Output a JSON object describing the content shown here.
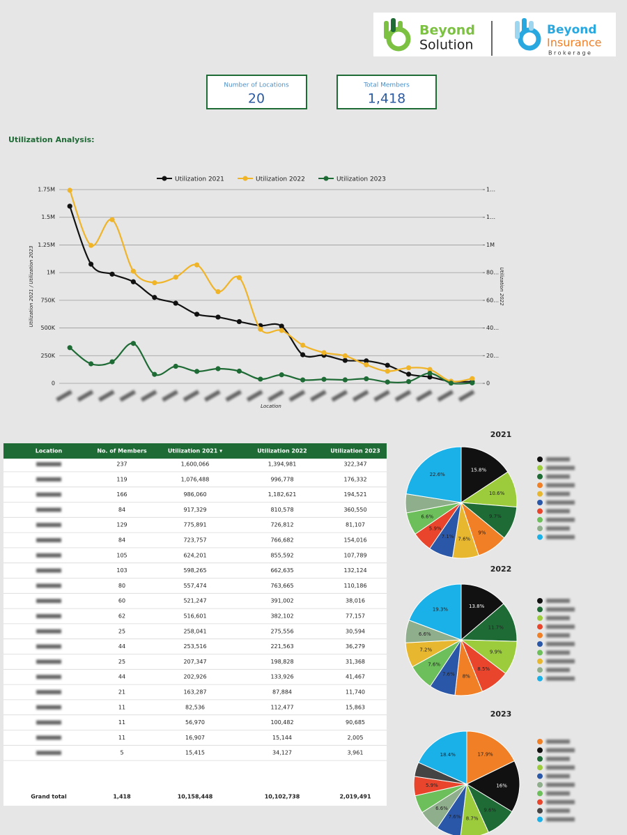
{
  "header": {
    "logo_left": [
      "Beyond",
      "Solution"
    ],
    "logo_right": [
      "Beyond",
      "Insurance",
      "Brokerage"
    ]
  },
  "kpis": [
    {
      "label": "Number of Locations",
      "value": "20"
    },
    {
      "label": "Total Members",
      "value": "1,418"
    }
  ],
  "section_title": "Utilization Analysis:",
  "chart_data": [
    {
      "type": "line",
      "legend": "top",
      "grid": true,
      "x_label": "Location",
      "y_label": "Utilization 2021 / Utilization 2023",
      "y2_label": "Utilization 2022",
      "categories": [
        null,
        null,
        null,
        null,
        null,
        null,
        null,
        null,
        null,
        null,
        null,
        null,
        null,
        null,
        null,
        null,
        null,
        null,
        null,
        null
      ],
      "ylim": [
        0,
        1750000
      ],
      "yticks": [
        0,
        {
          "value": 250000,
          "label": "250K"
        },
        {
          "value": 500000,
          "label": "500K"
        },
        {
          "value": 750000,
          "label": "750K"
        },
        {
          "value": 1000000,
          "label": "1M"
        },
        {
          "value": 1250000,
          "label": "1.25M"
        },
        {
          "value": 1500000,
          "label": "1.5M"
        },
        {
          "value": 1750000,
          "label": "1.75M"
        }
      ],
      "y2lim": [
        0,
        1400000
      ],
      "y2ticks": [
        0,
        {
          "value": 200000,
          "label": "20…"
        },
        {
          "value": 400000,
          "label": "40…"
        },
        {
          "value": 600000,
          "label": "60…"
        },
        {
          "value": 800000,
          "label": "80…"
        },
        {
          "value": 1000000,
          "label": "1M"
        },
        {
          "value": 1200000,
          "label": "1…"
        },
        {
          "value": 1400000,
          "label": "1…"
        }
      ],
      "series": [
        {
          "name": "Utilization 2021",
          "color": "#111111",
          "values": [
            1600066,
            1076488,
            986060,
            917329,
            775891,
            723757,
            624201,
            598265,
            557474,
            521247,
            516601,
            258041,
            253516,
            207347,
            202926,
            163287,
            82536,
            56970,
            16907,
            15415
          ]
        },
        {
          "name": "Utilization 2022",
          "color": "#f0b429",
          "axis": "y2",
          "values": [
            1394981,
            996778,
            1182621,
            810578,
            726812,
            766682,
            855592,
            662635,
            763665,
            391002,
            382102,
            275556,
            221563,
            198828,
            133926,
            87884,
            112477,
            100482,
            15144,
            34127
          ]
        },
        {
          "name": "Utilization 2023",
          "color": "#1e6b35",
          "values": [
            322347,
            176332,
            194521,
            360550,
            81107,
            154016,
            107789,
            132124,
            110186,
            38016,
            77157,
            30594,
            36279,
            31368,
            41467,
            11740,
            15863,
            90685,
            2005,
            3961
          ]
        }
      ]
    },
    {
      "type": "pie",
      "title": "2021",
      "labels": [
        null,
        null,
        null,
        null,
        null,
        null,
        null,
        null,
        null,
        null
      ],
      "values": [
        15.8,
        10.6,
        9.7,
        9,
        7.6,
        7.1,
        5.9,
        6.6,
        5.5,
        22.6
      ],
      "value_labels": [
        "15.8%",
        "10.6%",
        "9.7%",
        "9%",
        "7.6%",
        "7.1%",
        "5.9%",
        "6.6%",
        null,
        "22.6%"
      ],
      "colors": [
        "#111111",
        "#9ccc3c",
        "#1e6b35",
        "#f07f26",
        "#e8b730",
        "#2a57a8",
        "#e8452c",
        "#6cbf5a",
        "#8fae8b",
        "#1ab0e8"
      ]
    },
    {
      "type": "pie",
      "title": "2022",
      "labels": [
        null,
        null,
        null,
        null,
        null,
        null,
        null,
        null,
        null,
        null
      ],
      "values": [
        13.8,
        11.7,
        9.9,
        8.5,
        8,
        7.6,
        7.6,
        7.2,
        6.6,
        19.3
      ],
      "value_labels": [
        "13.8%",
        "11.7%",
        "9.9%",
        "8.5%",
        "8%",
        "7.6%",
        "7.6%",
        "7.2%",
        "6.6%",
        "19.3%"
      ],
      "colors": [
        "#111111",
        "#1e6b35",
        "#9ccc3c",
        "#e8452c",
        "#f07f26",
        "#2a57a8",
        "#6cbf5a",
        "#e8b730",
        "#8fae8b",
        "#1ab0e8"
      ]
    },
    {
      "type": "pie",
      "title": "2023",
      "labels": [
        null,
        null,
        null,
        null,
        null,
        null,
        null,
        null,
        null,
        null
      ],
      "values": [
        17.9,
        16,
        9.6,
        8.7,
        7.6,
        6.6,
        5.5,
        5.9,
        4.4,
        18.4
      ],
      "value_labels": [
        "17.9%",
        "16%",
        "9.6%",
        "8.7%",
        "7.6%",
        "6.6%",
        null,
        "5.9%",
        null,
        "18.4%"
      ],
      "colors": [
        "#f07f26",
        "#111111",
        "#1e6b35",
        "#9ccc3c",
        "#2a57a8",
        "#8fae8b",
        "#6cbf5a",
        "#e8452c",
        "#444444",
        "#1ab0e8"
      ]
    }
  ],
  "table": {
    "columns": [
      "Location",
      "No. of Members",
      "Utilization 2021 ▾",
      "Utilization 2022",
      "Utilization 2023"
    ],
    "rows": [
      [
        null,
        "237",
        "1,600,066",
        "1,394,981",
        "322,347"
      ],
      [
        null,
        "119",
        "1,076,488",
        "996,778",
        "176,332"
      ],
      [
        null,
        "166",
        "986,060",
        "1,182,621",
        "194,521"
      ],
      [
        null,
        "84",
        "917,329",
        "810,578",
        "360,550"
      ],
      [
        null,
        "129",
        "775,891",
        "726,812",
        "81,107"
      ],
      [
        null,
        "84",
        "723,757",
        "766,682",
        "154,016"
      ],
      [
        null,
        "105",
        "624,201",
        "855,592",
        "107,789"
      ],
      [
        null,
        "103",
        "598,265",
        "662,635",
        "132,124"
      ],
      [
        null,
        "80",
        "557,474",
        "763,665",
        "110,186"
      ],
      [
        null,
        "60",
        "521,247",
        "391,002",
        "38,016"
      ],
      [
        null,
        "62",
        "516,601",
        "382,102",
        "77,157"
      ],
      [
        null,
        "25",
        "258,041",
        "275,556",
        "30,594"
      ],
      [
        null,
        "44",
        "253,516",
        "221,563",
        "36,279"
      ],
      [
        null,
        "25",
        "207,347",
        "198,828",
        "31,368"
      ],
      [
        null,
        "44",
        "202,926",
        "133,926",
        "41,467"
      ],
      [
        null,
        "21",
        "163,287",
        "87,884",
        "11,740"
      ],
      [
        null,
        "11",
        "82,536",
        "112,477",
        "15,863"
      ],
      [
        null,
        "11",
        "56,970",
        "100,482",
        "90,685"
      ],
      [
        null,
        "11",
        "16,907",
        "15,144",
        "2,005"
      ],
      [
        null,
        "5",
        "15,415",
        "34,127",
        "3,961"
      ]
    ],
    "total": [
      "Grand total",
      "1,418",
      "10,158,448",
      "10,102,738",
      "2,019,491"
    ]
  }
}
